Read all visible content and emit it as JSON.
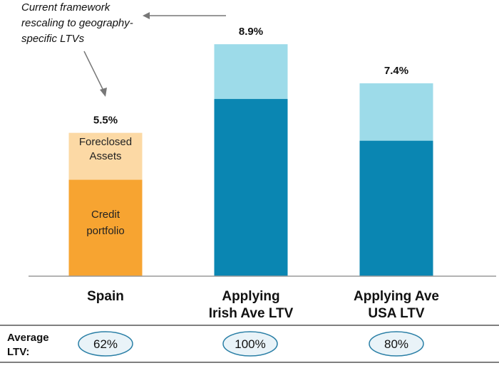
{
  "chart_data": {
    "type": "bar",
    "stacked": true,
    "categories": [
      "Spain",
      "Applying Irish Ave LTV",
      "Applying Ave USA LTV"
    ],
    "category_lines": [
      [
        "Spain"
      ],
      [
        "Applying",
        "Irish Ave LTV"
      ],
      [
        "Applying Ave",
        "USA LTV"
      ]
    ],
    "series": [
      {
        "name": "Credit portfolio",
        "label_lines": [
          "Credit",
          "portfolio"
        ],
        "values": [
          3.7,
          6.8,
          5.2
        ]
      },
      {
        "name": "Foreclosed Assets",
        "label_lines": [
          "Foreclosed",
          "Assets"
        ],
        "values": [
          1.8,
          2.1,
          2.2
        ]
      }
    ],
    "totals": [
      "5.5%",
      "8.9%",
      "7.4%"
    ],
    "total_values": [
      5.5,
      8.9,
      7.4
    ],
    "bar_colors": [
      {
        "bottom": "#F7A431",
        "top": "#FCD9A5"
      },
      {
        "bottom": "#0A86B2",
        "top": "#9DDBE9"
      },
      {
        "bottom": "#0A86B2",
        "top": "#9DDBE9"
      }
    ],
    "ylim": [
      0,
      9.45
    ],
    "annotation": {
      "lines": [
        "Current framework",
        "rescaling to geography-",
        "specific LTVs"
      ],
      "points_to": "Spain"
    },
    "ltv_row": {
      "title_lines": [
        "Average",
        "LTV:"
      ],
      "values": [
        "62%",
        "100%",
        "80%"
      ]
    },
    "colors": {
      "axis": "#9a9a9a",
      "divider": "#555555",
      "ellipse_fill": "#E9F3F8",
      "ellipse_stroke": "#2A7FA6",
      "arrow": "#777777"
    }
  }
}
